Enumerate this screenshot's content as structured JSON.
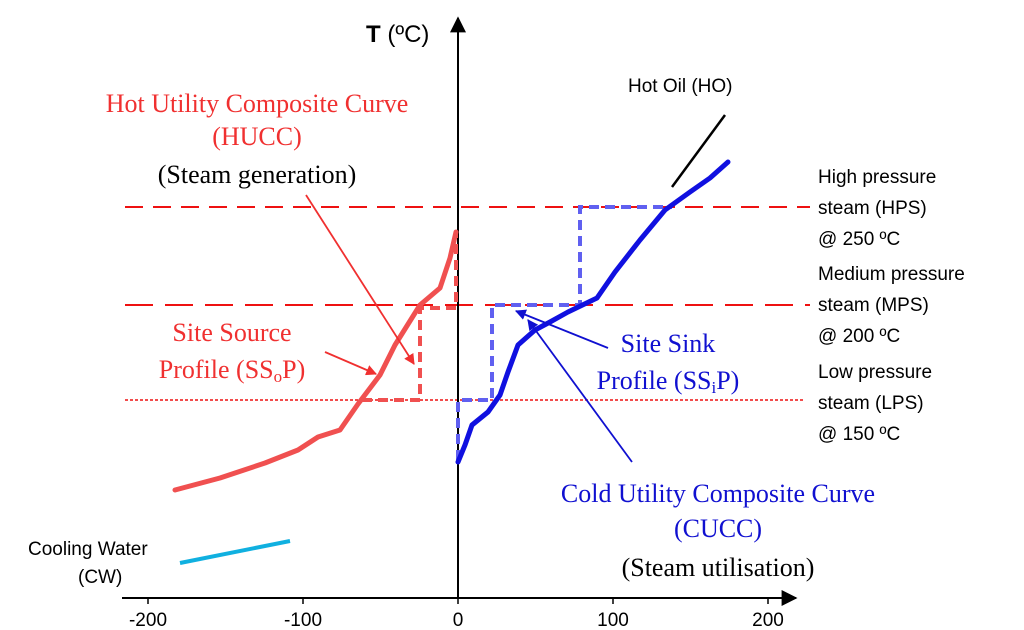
{
  "axes": {
    "y_label_bold": "T",
    "y_label_unit": " (ºC)",
    "x_ticks": [
      "-200",
      "-100",
      "0",
      "100",
      "200"
    ]
  },
  "labels": {
    "hot_oil": "Hot Oil (HO)",
    "hucc_line1": "Hot Utility Composite Curve",
    "hucc_line2": "(HUCC)",
    "hucc_line3": "(Steam generation)",
    "ssop_line1": "Site Source",
    "ssop_line2_pre": "Profile (SS",
    "ssop_line2_sub": "o",
    "ssop_line2_post": "P)",
    "ssip_line1": "Site Sink",
    "ssip_line2_pre": "Profile (SS",
    "ssip_line2_sub": "i",
    "ssip_line2_post": "P)",
    "cucc_line1": "Cold Utility Composite Curve",
    "cucc_line2": "(CUCC)",
    "cucc_line3": "(Steam utilisation)",
    "cw_line1": "Cooling Water",
    "cw_line2": "(CW)",
    "hps_line1": "High pressure",
    "hps_line2": "steam (HPS)",
    "hps_line3": "@ 250 ºC",
    "mps_line1": "Medium pressure",
    "mps_line2": "steam (MPS)",
    "mps_line3": "@ 200 ºC",
    "lps_line1": "Low pressure",
    "lps_line2": "steam (LPS)",
    "lps_line3": "@ 150 ºC"
  },
  "colors": {
    "hot": "#f05050",
    "hot_text": "#f03030",
    "cold": "#1010e0",
    "cold_dashed": "#6060f0",
    "cold_text": "#1010d0",
    "cooling_water": "#10b0e0",
    "axis": "#000000",
    "steam_line": "#ee1111"
  }
}
